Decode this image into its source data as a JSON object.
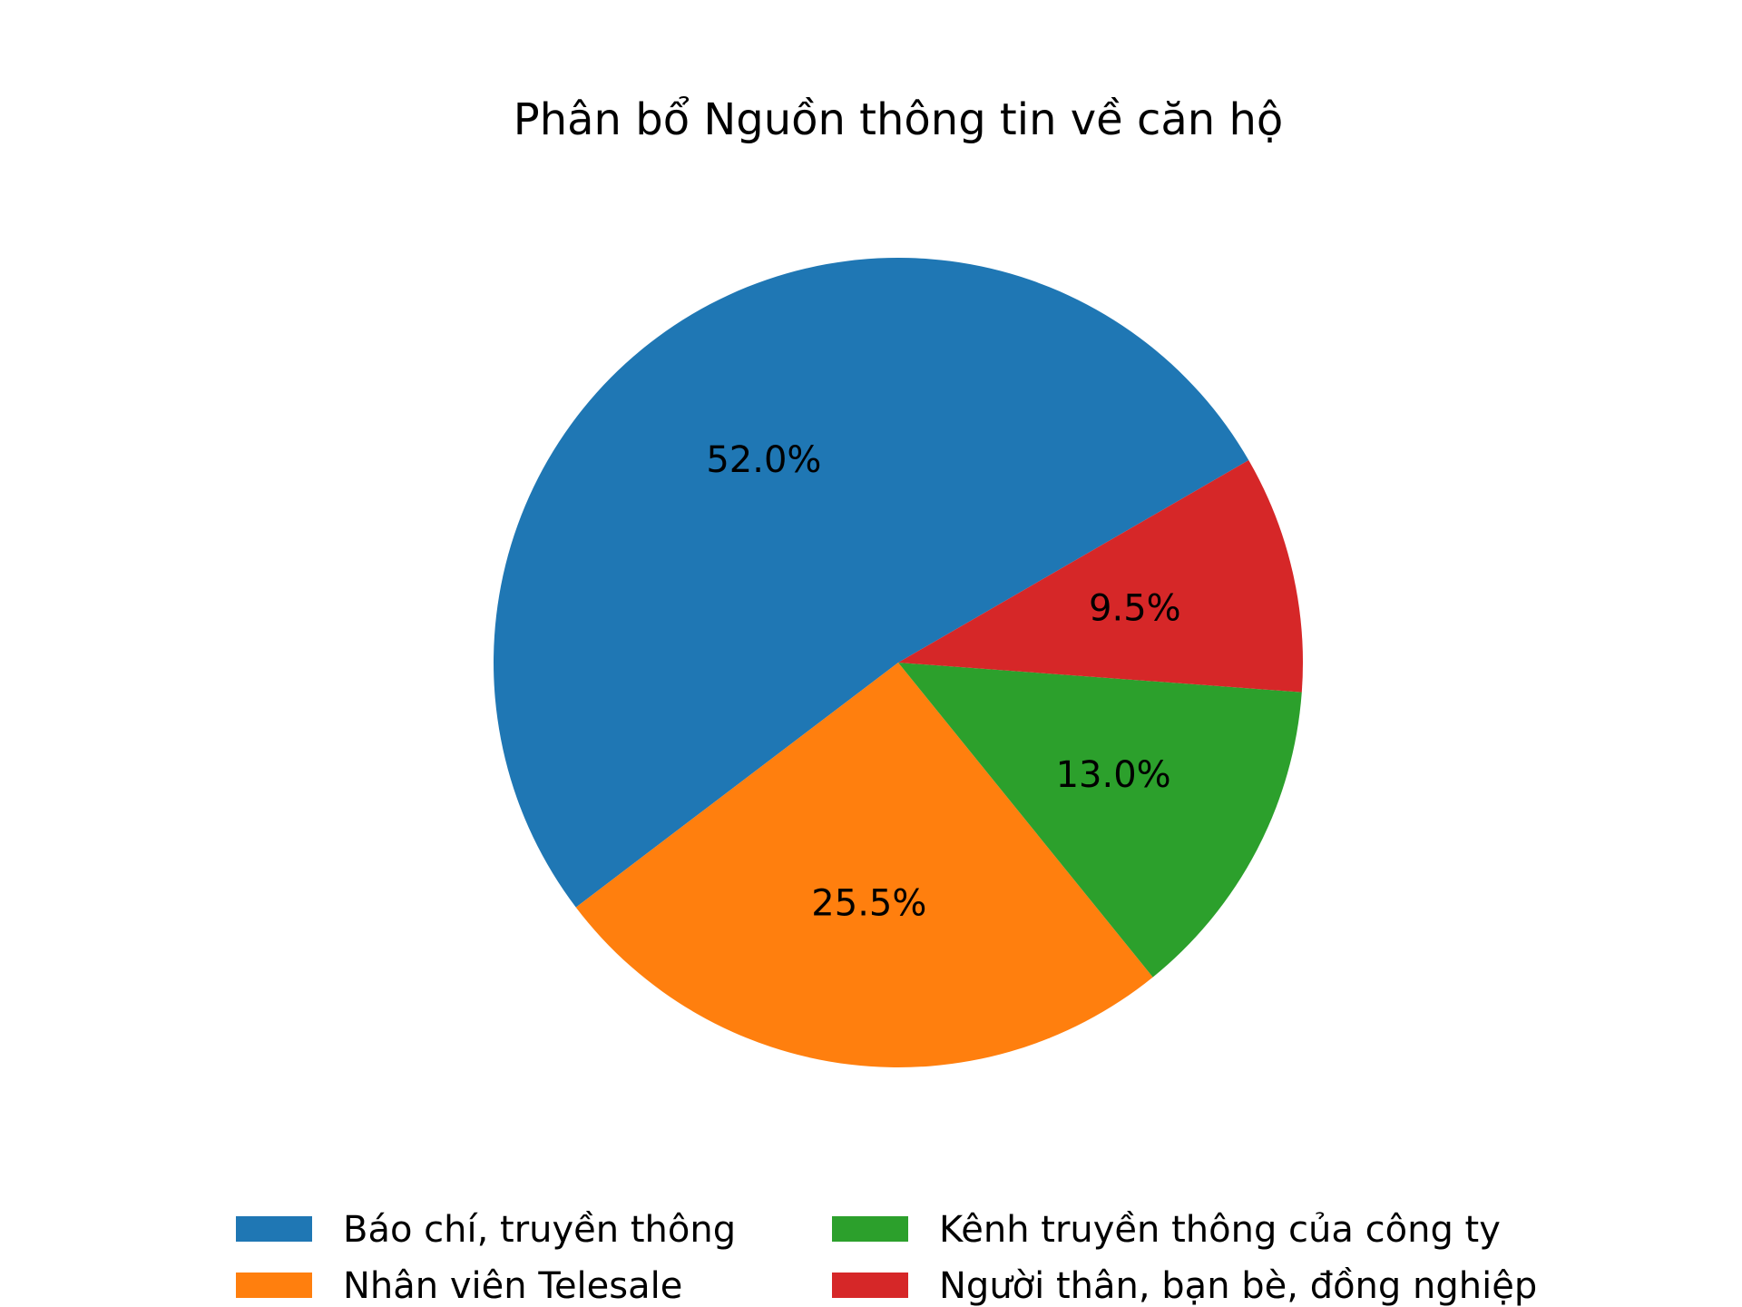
{
  "chart_data": {
    "type": "pie",
    "title": "Phân bổ Nguồn thông tin về căn hộ",
    "categories": [
      "Báo chí, truyền thông",
      "Nhân viên Telesale",
      "Kênh truyền thông của công ty",
      "Người thân, bạn bè, đồng nghiệp"
    ],
    "values": [
      52.0,
      25.5,
      13.0,
      9.5
    ],
    "labels": [
      "52.0%",
      "25.5%",
      "13.0%",
      "9.5%"
    ],
    "colors": [
      "#1f77b4",
      "#ff7f0e",
      "#2ca02c",
      "#d62728"
    ],
    "legend_position": "bottom",
    "legend_columns": 2
  }
}
